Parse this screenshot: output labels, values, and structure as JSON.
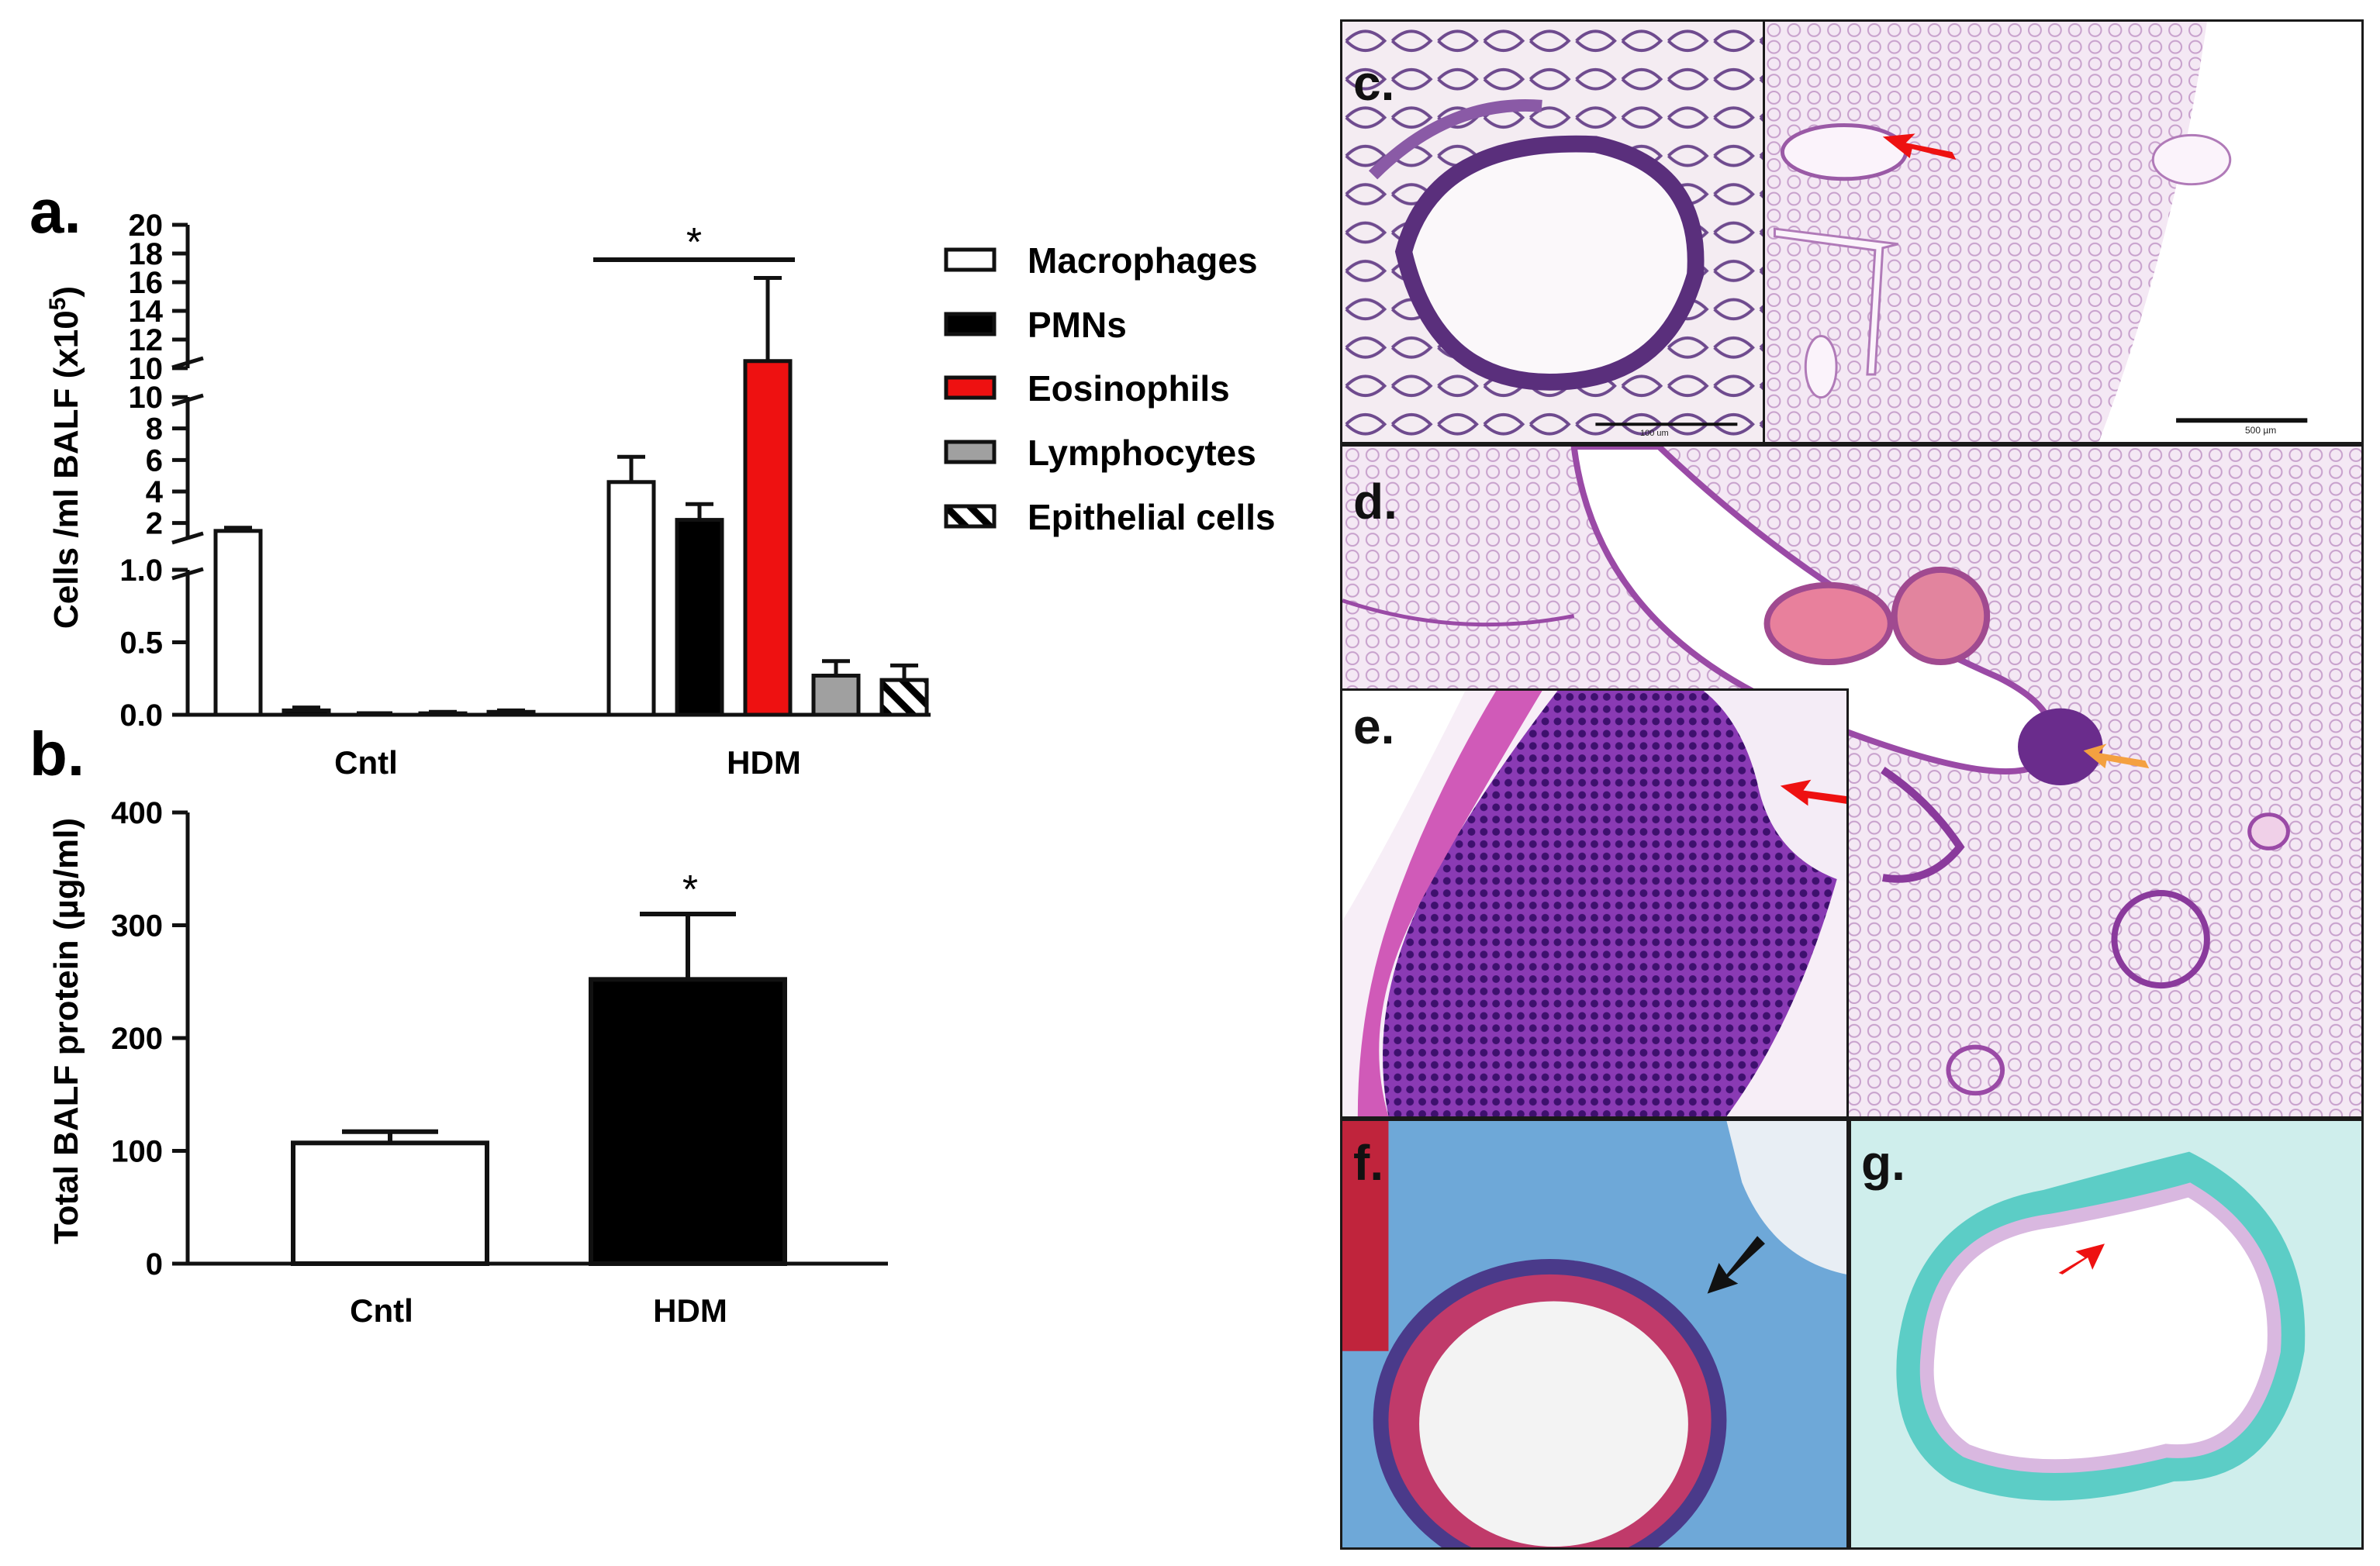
{
  "chart_data": [
    {
      "panel": "a.",
      "type": "bar",
      "ylabel": "Cells /ml BALF (x10",
      "ylabel_sup": "5",
      "ylabel_end": ")",
      "y_ticks_low": [
        "0.0",
        "0.5",
        "1.0"
      ],
      "y_ticks_mid": [
        "2",
        "4",
        "6",
        "8",
        "10"
      ],
      "y_ticks_high": [
        "10",
        "12",
        "14",
        "16",
        "18",
        "20"
      ],
      "categories": [
        "Cntl",
        "HDM"
      ],
      "series": [
        {
          "name": "Macrophages",
          "fill": "#ffffff",
          "values": [
            1.5,
            4.6
          ],
          "errors": [
            0.2,
            1.6
          ]
        },
        {
          "name": "PMNs",
          "fill": "#000000",
          "values": [
            0.03,
            2.2
          ],
          "errors": [
            0.02,
            1.0
          ]
        },
        {
          "name": "Eosinophils",
          "fill": "#ee1111",
          "values": [
            0.0,
            10.5
          ],
          "errors": [
            0.0,
            5.8
          ]
        },
        {
          "name": "Lymphocytes",
          "fill": "#a0a0a0",
          "values": [
            0.01,
            0.27
          ],
          "errors": [
            0.01,
            0.1
          ]
        },
        {
          "name": "Epithelial cells",
          "fill": "hatch",
          "values": [
            0.02,
            0.24
          ],
          "errors": [
            0.01,
            0.1
          ]
        }
      ],
      "significance": "*"
    },
    {
      "panel": "b.",
      "type": "bar",
      "ylabel": "Total BALF protein (µg/ml)",
      "y_ticks": [
        "0",
        "100",
        "200",
        "300",
        "400"
      ],
      "ylim": [
        0,
        400
      ],
      "categories": [
        "Cntl",
        "HDM"
      ],
      "values": [
        107,
        252
      ],
      "errors": [
        10,
        58
      ],
      "fills": [
        "#ffffff",
        "#000000"
      ],
      "significance": "*"
    }
  ],
  "histology": {
    "c": "c.",
    "d": "d.",
    "e": "e.",
    "f": "f.",
    "g": "g.",
    "scale_c_main": "500 µm",
    "scale_c_inset": "100 um"
  },
  "colors": {
    "he_pink": "#e6c4e4",
    "he_purple": "#7a3aa0",
    "trichrome_blue": "#5aa0d0",
    "alcian_cyan": "#5ccdc6",
    "arrow_red": "#ee1111",
    "arrow_orange": "#f4a040"
  }
}
